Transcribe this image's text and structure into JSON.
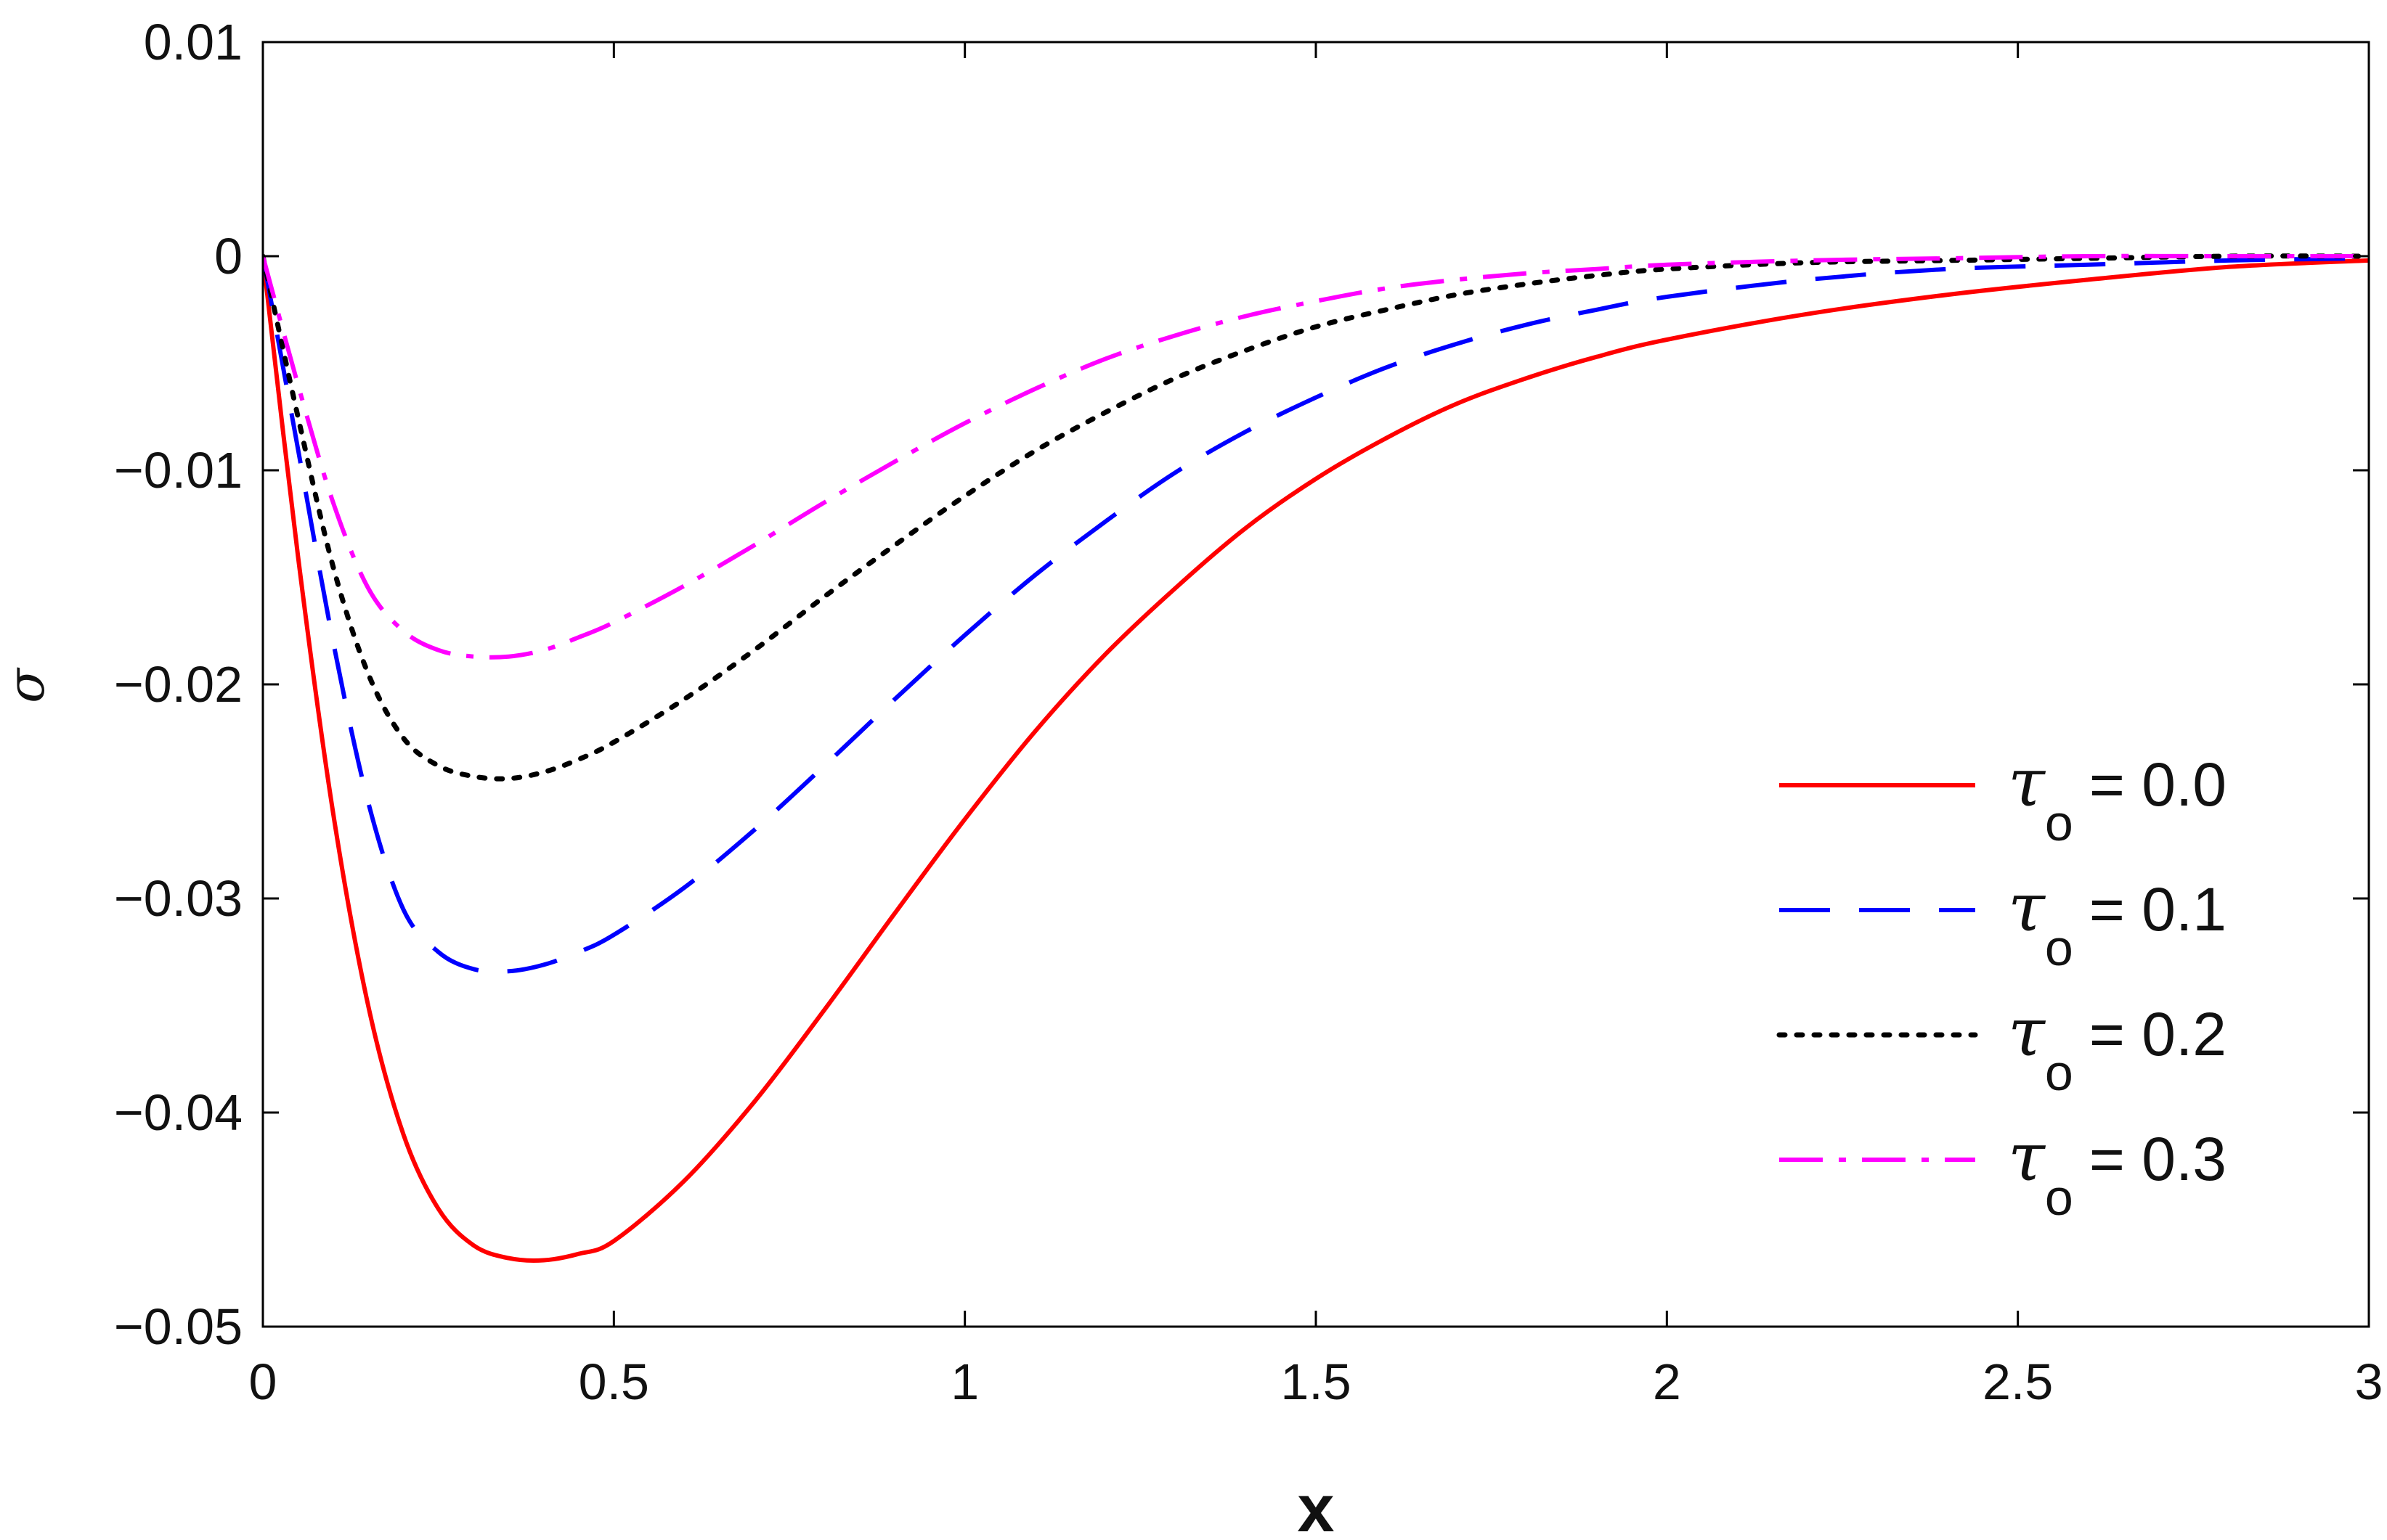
{
  "chart_data": {
    "type": "line",
    "title": "",
    "xlabel": "x",
    "ylabel": "σ",
    "xlim": [
      0,
      3
    ],
    "ylim": [
      -0.05,
      0.01
    ],
    "xticks": [
      0,
      0.5,
      1,
      1.5,
      2,
      2.5,
      3
    ],
    "xtick_labels": [
      "0",
      "0.5",
      "1",
      "1.5",
      "2",
      "2.5",
      "3"
    ],
    "yticks": [
      0.01,
      0,
      -0.01,
      -0.02,
      -0.03,
      -0.04,
      -0.05
    ],
    "ytick_labels": [
      "0.01",
      "0",
      "−0.01",
      "−0.02",
      "−0.03",
      "−0.04",
      "−0.05"
    ],
    "grid": false,
    "legend_position": "right",
    "series": [
      {
        "name": "τo = 0.0",
        "legend_symbol": "τ",
        "legend_subscript": "o",
        "legend_value": "= 0.0",
        "color": "#ff0000",
        "style": "solid",
        "x": [
          0,
          0.05,
          0.1,
          0.15,
          0.2,
          0.25,
          0.3,
          0.35,
          0.4,
          0.45,
          0.5,
          0.6,
          0.7,
          0.8,
          0.9,
          1.0,
          1.1,
          1.2,
          1.3,
          1.4,
          1.5,
          1.6,
          1.7,
          1.8,
          1.9,
          2.0,
          2.2,
          2.4,
          2.6,
          2.8,
          3.0
        ],
        "y": [
          0,
          -0.014,
          -0.026,
          -0.035,
          -0.041,
          -0.0445,
          -0.0462,
          -0.0468,
          -0.0469,
          -0.0466,
          -0.046,
          -0.0432,
          -0.0395,
          -0.0352,
          -0.0307,
          -0.0263,
          -0.0222,
          -0.0186,
          -0.0155,
          -0.0127,
          -0.0104,
          -0.0085,
          -0.0069,
          -0.0057,
          -0.0047,
          -0.0039,
          -0.0027,
          -0.0018,
          -0.0011,
          -0.0005,
          -0.0002
        ]
      },
      {
        "name": "τo = 0.1",
        "legend_symbol": "τ",
        "legend_subscript": "o",
        "legend_value": "= 0.1",
        "color": "#0000ff",
        "style": "dashed",
        "x": [
          0,
          0.05,
          0.1,
          0.15,
          0.2,
          0.25,
          0.3,
          0.35,
          0.4,
          0.45,
          0.5,
          0.6,
          0.7,
          0.8,
          0.9,
          1.0,
          1.1,
          1.2,
          1.3,
          1.4,
          1.5,
          1.6,
          1.7,
          1.8,
          1.9,
          2.0,
          2.2,
          2.4,
          2.6,
          2.8,
          3.0
        ],
        "y": [
          0,
          -0.009,
          -0.018,
          -0.0255,
          -0.0305,
          -0.0325,
          -0.0333,
          -0.0334,
          -0.0331,
          -0.0325,
          -0.0317,
          -0.0295,
          -0.0268,
          -0.0238,
          -0.0207,
          -0.0177,
          -0.0149,
          -0.0124,
          -0.0101,
          -0.0082,
          -0.0066,
          -0.0052,
          -0.0041,
          -0.0032,
          -0.0025,
          -0.0019,
          -0.0011,
          -0.0006,
          -0.0004,
          -0.0002,
          -0.0001
        ]
      },
      {
        "name": "τo = 0.2",
        "legend_symbol": "τ",
        "legend_subscript": "o",
        "legend_value": "= 0.2",
        "color": "#000000",
        "style": "dotted",
        "x": [
          0,
          0.05,
          0.1,
          0.15,
          0.2,
          0.25,
          0.3,
          0.35,
          0.4,
          0.45,
          0.5,
          0.6,
          0.7,
          0.8,
          0.9,
          1.0,
          1.1,
          1.2,
          1.3,
          1.4,
          1.5,
          1.6,
          1.7,
          1.8,
          1.9,
          2.0,
          2.2,
          2.4,
          2.6,
          2.8,
          3.0
        ],
        "y": [
          0,
          -0.0075,
          -0.0145,
          -0.0195,
          -0.0225,
          -0.0238,
          -0.0243,
          -0.0244,
          -0.0241,
          -0.0235,
          -0.0227,
          -0.0207,
          -0.0184,
          -0.0159,
          -0.0135,
          -0.0112,
          -0.0091,
          -0.0073,
          -0.0057,
          -0.0044,
          -0.0033,
          -0.0025,
          -0.0018,
          -0.0013,
          -0.0009,
          -0.0006,
          -0.0003,
          -0.0002,
          -0.0001,
          0,
          0
        ]
      },
      {
        "name": "τo = 0.3",
        "legend_symbol": "τ",
        "legend_subscript": "o",
        "legend_value": "= 0.3",
        "color": "#ff00ff",
        "style": "dashdot",
        "x": [
          0,
          0.05,
          0.1,
          0.15,
          0.2,
          0.25,
          0.3,
          0.35,
          0.4,
          0.45,
          0.5,
          0.6,
          0.7,
          0.8,
          0.9,
          1.0,
          1.1,
          1.2,
          1.3,
          1.4,
          1.5,
          1.6,
          1.7,
          1.8,
          1.9,
          2.0,
          2.2,
          2.4,
          2.6,
          2.8,
          3.0
        ],
        "y": [
          0,
          -0.006,
          -0.0115,
          -0.0155,
          -0.0175,
          -0.0184,
          -0.0187,
          -0.0187,
          -0.0184,
          -0.0178,
          -0.0171,
          -0.0154,
          -0.0135,
          -0.0115,
          -0.0096,
          -0.0078,
          -0.0062,
          -0.0048,
          -0.0037,
          -0.0028,
          -0.0021,
          -0.0015,
          -0.0011,
          -0.0008,
          -0.0006,
          -0.0004,
          -0.0002,
          -0.0001,
          0,
          0,
          0
        ]
      }
    ]
  }
}
